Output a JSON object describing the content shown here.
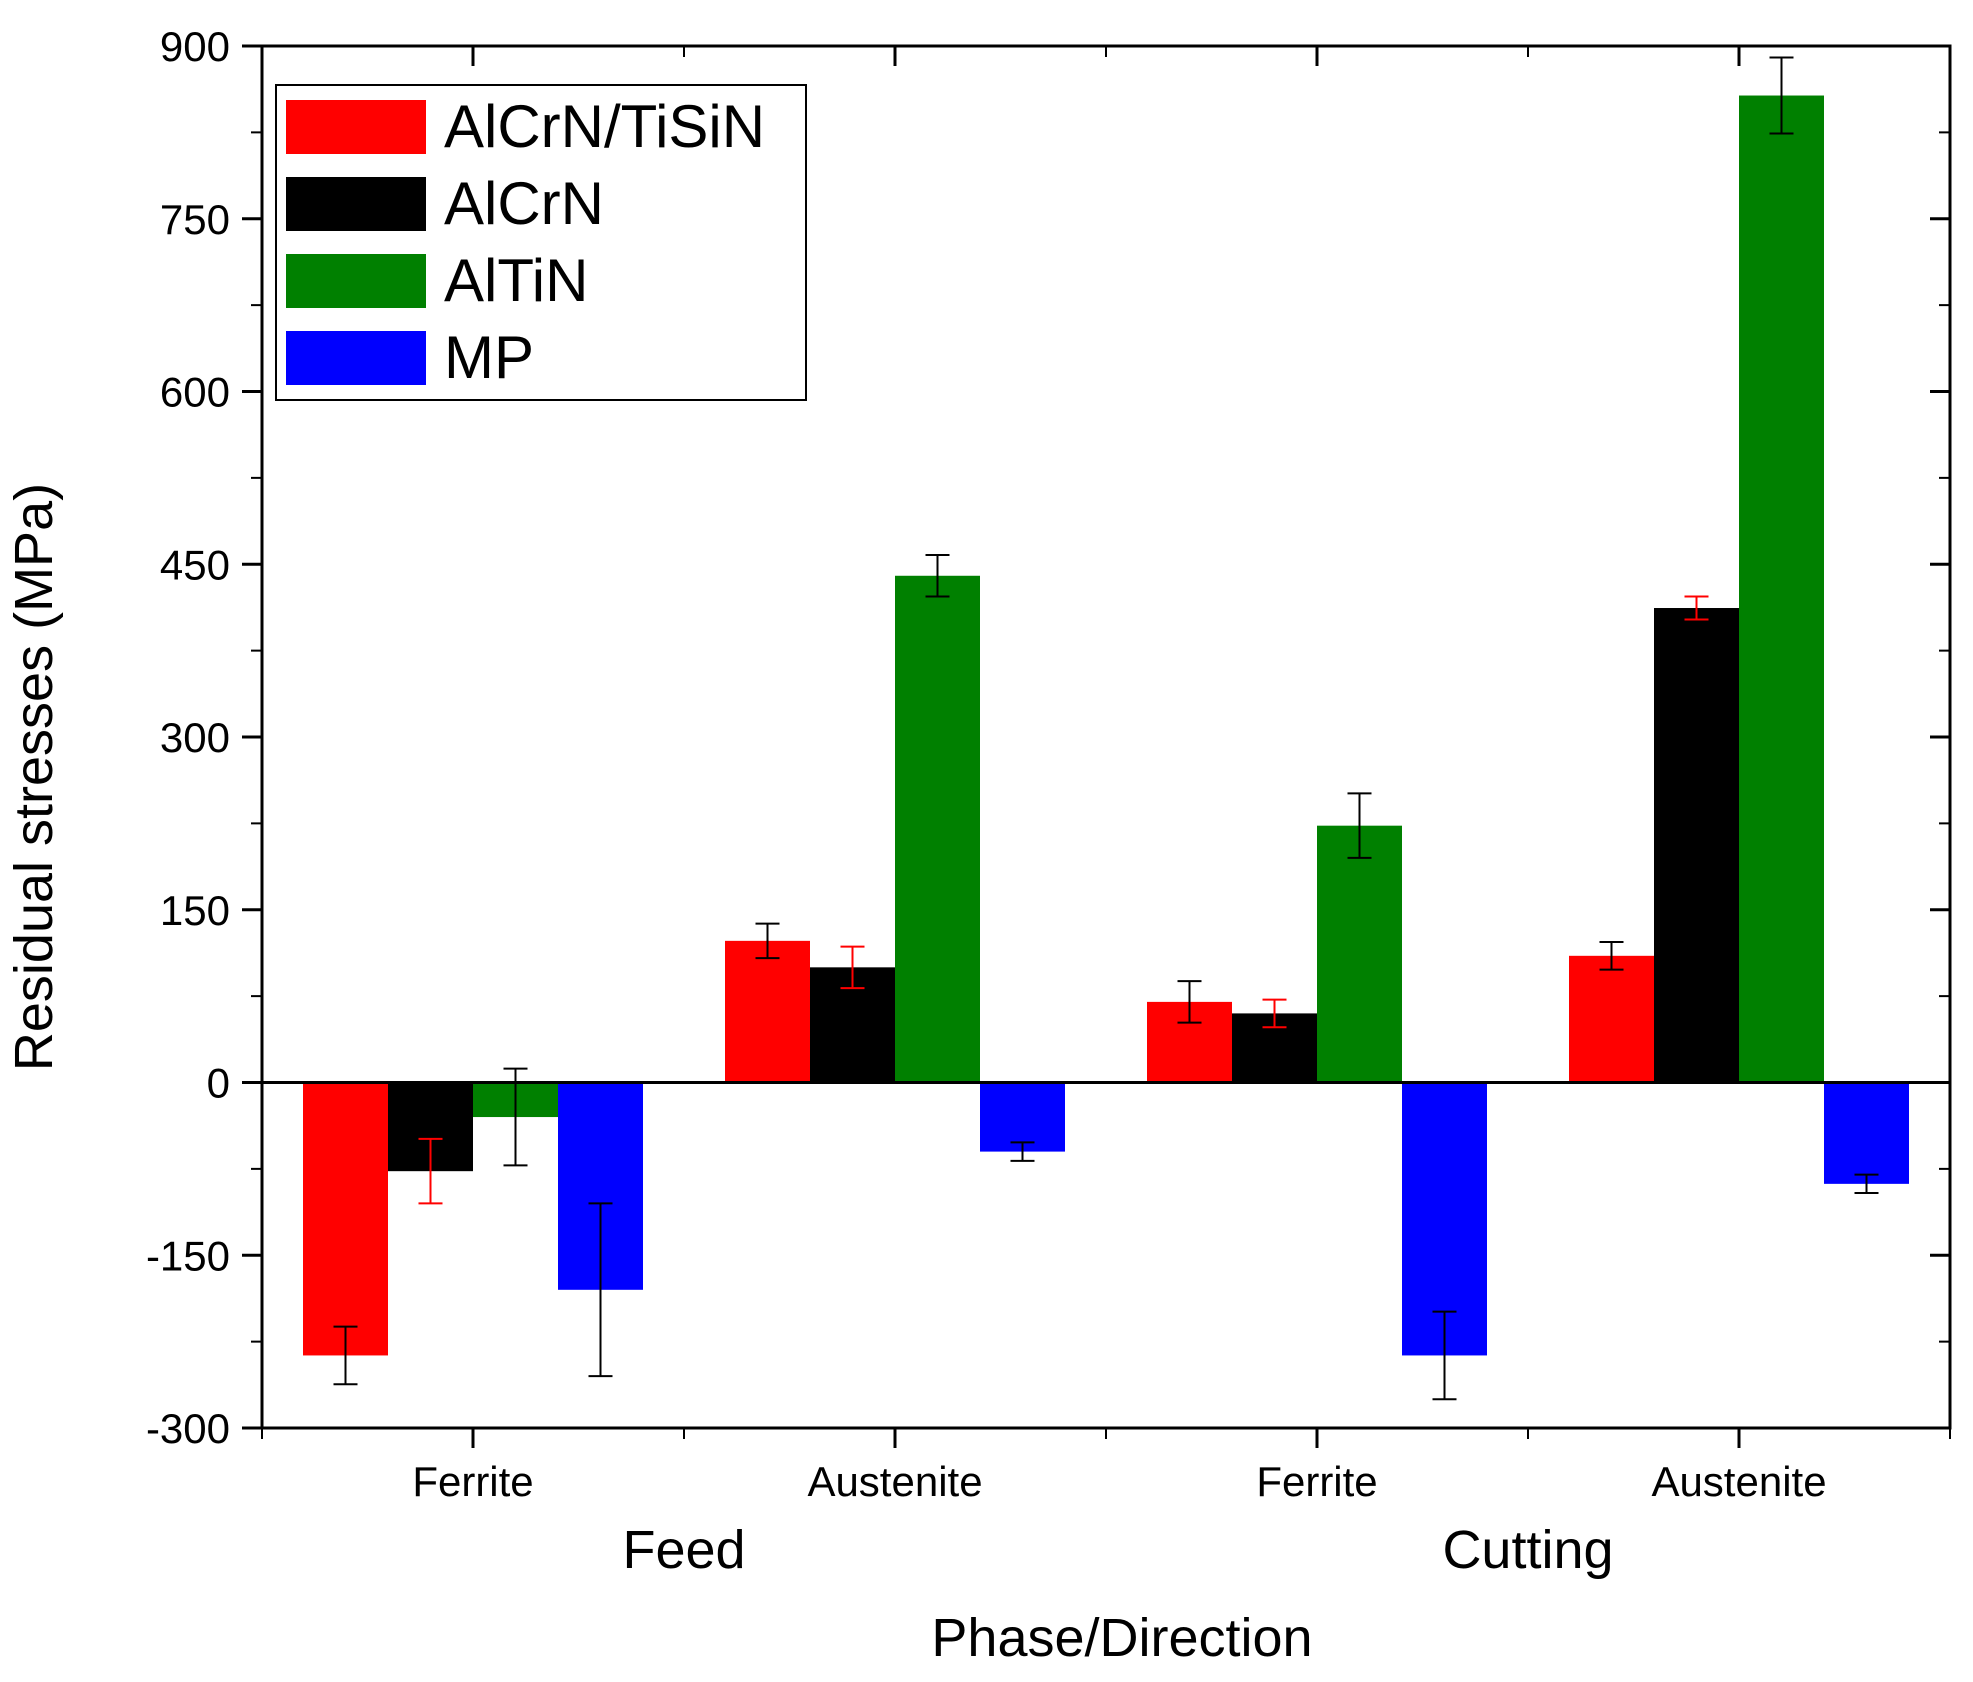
{
  "chart_data": {
    "type": "bar",
    "xlabel": "Phase/Direction",
    "ylabel": "Residual stresses (MPa)",
    "ylim": [
      -300,
      900
    ],
    "yticks": [
      -300,
      -150,
      0,
      150,
      300,
      450,
      600,
      750,
      900
    ],
    "legend_position": "top-left",
    "categories": [
      "Ferrite",
      "Austenite",
      "Ferrite",
      "Austenite"
    ],
    "groups": [
      {
        "label": "Feed",
        "categories": [
          0,
          1
        ]
      },
      {
        "label": "Cutting",
        "categories": [
          2,
          3
        ]
      }
    ],
    "series": [
      {
        "name": "AlCrN/TiSiN",
        "color": "#ff0000",
        "errorColor": "#000000",
        "values": [
          -237,
          123,
          70,
          110
        ],
        "errors": [
          25,
          15,
          18,
          12
        ]
      },
      {
        "name": "AlCrN",
        "color": "#000000",
        "errorColor": "#ff0000",
        "values": [
          -77,
          100,
          60,
          412
        ],
        "errors": [
          28,
          18,
          12,
          10
        ]
      },
      {
        "name": "AlTiN",
        "color": "#008000",
        "errorColor": "#000000",
        "values": [
          -30,
          440,
          223,
          857
        ],
        "errors": [
          42,
          18,
          28,
          33
        ]
      },
      {
        "name": "MP",
        "color": "#0000ff",
        "errorColor": "#000000",
        "values": [
          -180,
          -60,
          -237,
          -88
        ],
        "errors": [
          75,
          8,
          38,
          8
        ]
      }
    ]
  }
}
